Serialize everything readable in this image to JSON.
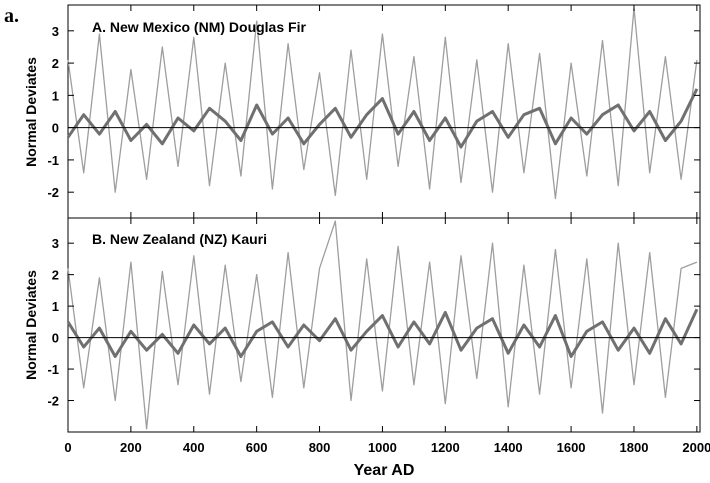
{
  "figure_label": "a.",
  "xlabel": "Year AD",
  "chart_data": [
    {
      "type": "line",
      "title": "A.  New Mexico (NM) Douglas Fir",
      "xlabel": "Year AD",
      "ylabel": "Normal Deviates",
      "xlim": [
        0,
        2010
      ],
      "ylim": [
        -2.8,
        3.8
      ],
      "xticks": [
        0,
        200,
        400,
        600,
        800,
        1000,
        1200,
        1400,
        1600,
        1800,
        2000
      ],
      "yticks": [
        -2,
        -1,
        0,
        1,
        2,
        3
      ],
      "zero_line": true,
      "grid": false,
      "series": [
        {
          "role": "annual",
          "color": "#9e9e9e",
          "x": [
            0,
            50,
            100,
            150,
            200,
            250,
            300,
            350,
            400,
            450,
            500,
            550,
            600,
            650,
            700,
            750,
            800,
            850,
            900,
            950,
            1000,
            1050,
            1100,
            1150,
            1200,
            1250,
            1300,
            1350,
            1400,
            1450,
            1500,
            1550,
            1600,
            1650,
            1700,
            1750,
            1800,
            1850,
            1900,
            1950,
            2000
          ],
          "values": [
            2.1,
            -1.4,
            2.9,
            -2.0,
            1.8,
            -1.6,
            2.5,
            -1.2,
            2.8,
            -1.8,
            2.0,
            -1.5,
            3.3,
            -1.9,
            2.6,
            -1.3,
            1.7,
            -2.1,
            2.4,
            -1.6,
            2.9,
            -1.2,
            2.2,
            -1.9,
            2.8,
            -1.7,
            2.1,
            -2.0,
            2.6,
            -1.4,
            2.3,
            -2.2,
            2.0,
            -1.5,
            2.7,
            -1.8,
            3.7,
            -1.4,
            2.2,
            -1.6,
            2.1
          ]
        },
        {
          "role": "smoothed",
          "color": "#707070",
          "x": [
            0,
            50,
            100,
            150,
            200,
            250,
            300,
            350,
            400,
            450,
            500,
            550,
            600,
            650,
            700,
            750,
            800,
            850,
            900,
            950,
            1000,
            1050,
            1100,
            1150,
            1200,
            1250,
            1300,
            1350,
            1400,
            1450,
            1500,
            1550,
            1600,
            1650,
            1700,
            1750,
            1800,
            1850,
            1900,
            1950,
            2000
          ],
          "values": [
            -0.3,
            0.4,
            -0.2,
            0.5,
            -0.4,
            0.1,
            -0.5,
            0.3,
            -0.1,
            0.6,
            0.2,
            -0.4,
            0.7,
            -0.2,
            0.3,
            -0.5,
            0.1,
            0.6,
            -0.3,
            0.4,
            0.9,
            -0.2,
            0.5,
            -0.4,
            0.3,
            -0.6,
            0.2,
            0.5,
            -0.3,
            0.4,
            0.6,
            -0.5,
            0.3,
            -0.2,
            0.4,
            0.7,
            -0.1,
            0.5,
            -0.4,
            0.2,
            1.2
          ]
        }
      ]
    },
    {
      "type": "line",
      "title": "B.  New Zealand (NZ) Kauri",
      "xlabel": "Year AD",
      "ylabel": "Normal Deviates",
      "xlim": [
        0,
        2010
      ],
      "ylim": [
        -3.0,
        3.8
      ],
      "xticks": [
        0,
        200,
        400,
        600,
        800,
        1000,
        1200,
        1400,
        1600,
        1800,
        2000
      ],
      "xticklabels": [
        "0",
        "200",
        "400",
        "600",
        "800",
        "1000",
        "1200",
        "1400",
        "1600",
        "1800",
        "2000"
      ],
      "yticks": [
        -2,
        -1,
        0,
        1,
        2,
        3
      ],
      "zero_line": true,
      "grid": false,
      "series": [
        {
          "role": "annual",
          "color": "#9e9e9e",
          "x": [
            0,
            50,
            100,
            150,
            200,
            250,
            300,
            350,
            400,
            450,
            500,
            550,
            600,
            650,
            700,
            750,
            800,
            850,
            900,
            950,
            1000,
            1050,
            1100,
            1150,
            1200,
            1250,
            1300,
            1350,
            1400,
            1450,
            1500,
            1550,
            1600,
            1650,
            1700,
            1750,
            1800,
            1850,
            1900,
            1950,
            2000
          ],
          "values": [
            2.2,
            -1.6,
            1.9,
            -2.0,
            2.4,
            -2.9,
            2.1,
            -1.5,
            2.6,
            -1.8,
            2.3,
            -1.4,
            2.0,
            -1.9,
            2.7,
            -1.6,
            2.2,
            3.7,
            -2.0,
            2.5,
            -1.7,
            2.9,
            -1.5,
            2.4,
            -2.1,
            2.6,
            -1.3,
            3.0,
            -2.2,
            2.3,
            -1.8,
            2.8,
            -1.6,
            2.5,
            -2.4,
            3.0,
            -1.5,
            2.7,
            -1.9,
            2.2,
            2.4
          ]
        },
        {
          "role": "smoothed",
          "color": "#707070",
          "x": [
            0,
            50,
            100,
            150,
            200,
            250,
            300,
            350,
            400,
            450,
            500,
            550,
            600,
            650,
            700,
            750,
            800,
            850,
            900,
            950,
            1000,
            1050,
            1100,
            1150,
            1200,
            1250,
            1300,
            1350,
            1400,
            1450,
            1500,
            1550,
            1600,
            1650,
            1700,
            1750,
            1800,
            1850,
            1900,
            1950,
            2000
          ],
          "values": [
            0.5,
            -0.3,
            0.3,
            -0.6,
            0.2,
            -0.4,
            0.1,
            -0.5,
            0.4,
            -0.2,
            0.3,
            -0.6,
            0.2,
            0.5,
            -0.3,
            0.4,
            -0.1,
            0.6,
            -0.4,
            0.2,
            0.7,
            -0.3,
            0.5,
            -0.2,
            0.8,
            -0.4,
            0.3,
            0.6,
            -0.5,
            0.4,
            -0.3,
            0.7,
            -0.6,
            0.2,
            0.5,
            -0.4,
            0.3,
            -0.5,
            0.6,
            -0.2,
            0.9
          ]
        }
      ]
    }
  ]
}
